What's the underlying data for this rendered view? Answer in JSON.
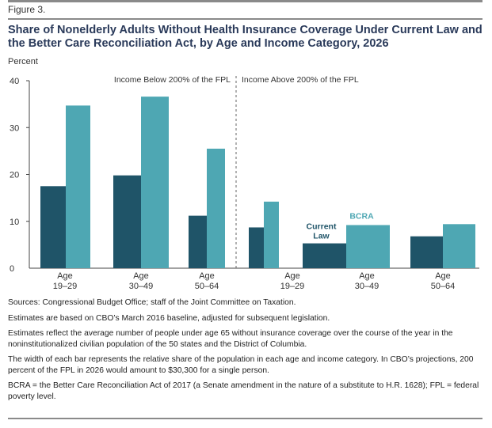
{
  "figure_label": "Figure 3.",
  "title": "Share of Nonelderly Adults Without Health Insurance Coverage Under Current Law and the Better Care Reconciliation Act, by Age and Income Category, 2026",
  "colors": {
    "current_law": "#1f5468",
    "bcra": "#4ea7b3",
    "title": "#2a3a5a",
    "rule": "#8a8a8a"
  },
  "chart_data": {
    "type": "bar",
    "ylabel": "Percent",
    "ylim": [
      0,
      40
    ],
    "yticks": [
      0,
      10,
      20,
      30,
      40
    ],
    "panels": [
      {
        "label": "Income Below 200% of the FPL"
      },
      {
        "label": "Income Above 200% of the FPL"
      }
    ],
    "groups": [
      {
        "panel": 0,
        "label": [
          "Age",
          "19–29"
        ],
        "current_law": 17.5,
        "bcra": 34.7
      },
      {
        "panel": 0,
        "label": [
          "Age",
          "30–49"
        ],
        "current_law": 19.8,
        "bcra": 36.6
      },
      {
        "panel": 0,
        "label": [
          "Age",
          "50–64"
        ],
        "current_law": 11.2,
        "bcra": 25.5
      },
      {
        "panel": 1,
        "label": [
          "Age",
          "19–29"
        ],
        "current_law": 8.7,
        "bcra": 14.2
      },
      {
        "panel": 1,
        "label": [
          "Age",
          "30–49"
        ],
        "current_law": 5.3,
        "bcra": 9.2
      },
      {
        "panel": 1,
        "label": [
          "Age",
          "50–64"
        ],
        "current_law": 6.8,
        "bcra": 9.4
      }
    ],
    "series": [
      {
        "name": "Current Law",
        "key": "current_law"
      },
      {
        "name": "BCRA",
        "key": "bcra"
      }
    ],
    "annotations": {
      "current_law": [
        "Current",
        "Law"
      ],
      "bcra": "BCRA"
    }
  },
  "notes": [
    "Sources: Congressional Budget Office; staff of the Joint Committee on Taxation.",
    "Estimates are based on CBO’s March 2016 baseline, adjusted for subsequent legislation.",
    "Estimates reflect the average number of people under age 65 without insurance coverage over the course of the year in the noninstitutionalized civilian population of the 50 states and the District of Columbia.",
    "The width of each bar represents the relative share of the population in each age and income category. In CBO’s projections, 200 percent of the FPL in 2026 would amount to $30,300 for a single person.",
    "BCRA = the Better Care Reconciliation Act of 2017 (a Senate amendment in the nature of a substitute to H.R. 1628); FPL = federal poverty level."
  ]
}
